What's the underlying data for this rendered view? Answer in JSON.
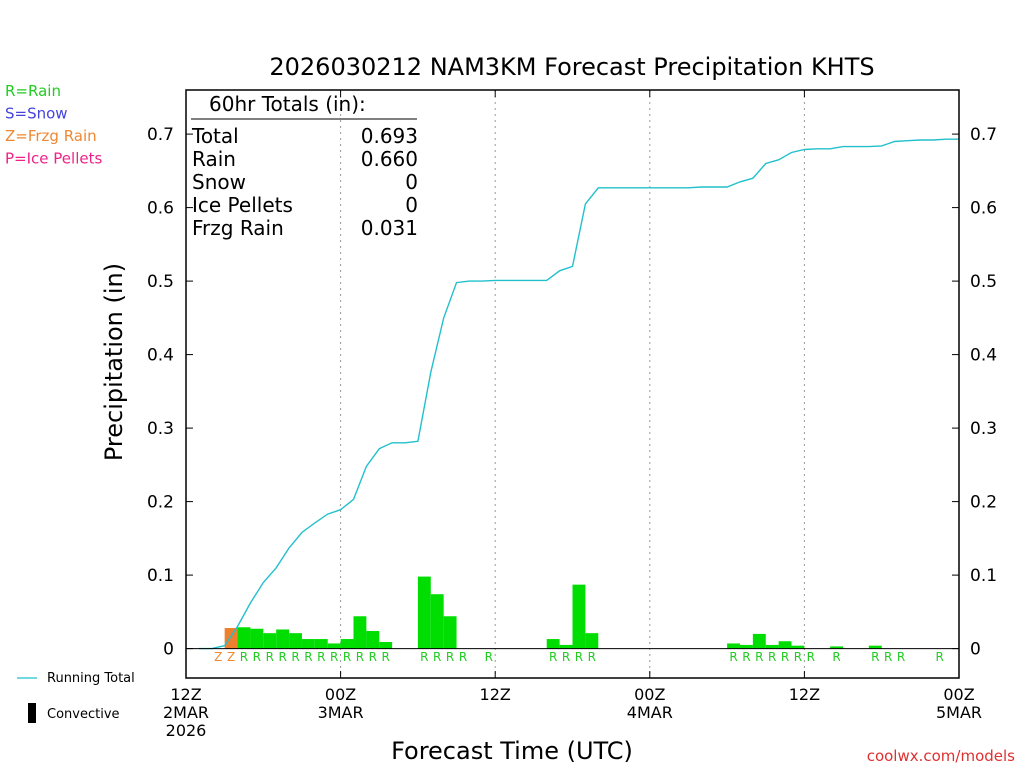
{
  "chart_data": {
    "type": "bar",
    "title": "2026030212 NAM3KM Forecast Precipitation KHTS",
    "xlabel": "Forecast Time (UTC)",
    "ylabel": "Precipitation (in)",
    "ylim": [
      -0.04,
      0.76
    ],
    "xlim_hours": [
      0,
      60
    ],
    "yticks": [
      0,
      0.1,
      0.2,
      0.3,
      0.4,
      0.5,
      0.6,
      0.7
    ],
    "ytick_labels": [
      "0",
      "0.1",
      "0.2",
      "0.3",
      "0.4",
      "0.5",
      "0.6",
      "0.7"
    ],
    "xticks": [
      {
        "hour": 0,
        "lines": [
          "12Z",
          "2MAR",
          "2026"
        ]
      },
      {
        "hour": 12,
        "lines": [
          "00Z",
          "3MAR"
        ]
      },
      {
        "hour": 24,
        "lines": [
          "12Z"
        ]
      },
      {
        "hour": 36,
        "lines": [
          "00Z",
          "4MAR"
        ]
      },
      {
        "hour": 48,
        "lines": [
          "12Z"
        ]
      },
      {
        "hour": 60,
        "lines": [
          "00Z",
          "5MAR"
        ]
      }
    ],
    "grid_hours": [
      12,
      24,
      36,
      48
    ],
    "ptype_legend": [
      {
        "label": "R=Rain",
        "color": "#22cc22"
      },
      {
        "label": "S=Snow",
        "color": "#4444dd"
      },
      {
        "label": "Z=Frzg Rain",
        "color": "#ee8833"
      },
      {
        "label": "P=Ice Pellets",
        "color": "#ee2288"
      }
    ],
    "totals": {
      "header": "60hr Totals (in):",
      "rows": [
        {
          "label": "Total",
          "value": "0.693"
        },
        {
          "label": "Rain",
          "value": "0.660"
        },
        {
          "label": "Snow",
          "value": "0"
        },
        {
          "label": "Ice Pellets",
          "value": "0"
        },
        {
          "label": "Frzg Rain",
          "value": "0.031"
        }
      ]
    },
    "bars": [
      {
        "hour": 4,
        "value": 0.028,
        "type": "Z"
      },
      {
        "hour": 5,
        "value": 0.029,
        "type": "R"
      },
      {
        "hour": 6,
        "value": 0.027,
        "type": "R"
      },
      {
        "hour": 7,
        "value": 0.021,
        "type": "R"
      },
      {
        "hour": 8,
        "value": 0.026,
        "type": "R"
      },
      {
        "hour": 9,
        "value": 0.021,
        "type": "R"
      },
      {
        "hour": 10,
        "value": 0.013,
        "type": "R"
      },
      {
        "hour": 11,
        "value": 0.013,
        "type": "R"
      },
      {
        "hour": 12,
        "value": 0.007,
        "type": "R"
      },
      {
        "hour": 13,
        "value": 0.013,
        "type": "R"
      },
      {
        "hour": 14,
        "value": 0.044,
        "type": "R"
      },
      {
        "hour": 15,
        "value": 0.024,
        "type": "R"
      },
      {
        "hour": 16,
        "value": 0.009,
        "type": "R"
      },
      {
        "hour": 19,
        "value": 0.098,
        "type": "R"
      },
      {
        "hour": 20,
        "value": 0.074,
        "type": "R"
      },
      {
        "hour": 21,
        "value": 0.044,
        "type": "R"
      },
      {
        "hour": 29,
        "value": 0.013,
        "type": "R"
      },
      {
        "hour": 30,
        "value": 0.005,
        "type": "R"
      },
      {
        "hour": 31,
        "value": 0.087,
        "type": "R"
      },
      {
        "hour": 32,
        "value": 0.021,
        "type": "R"
      },
      {
        "hour": 43,
        "value": 0.007,
        "type": "R"
      },
      {
        "hour": 44,
        "value": 0.005,
        "type": "R"
      },
      {
        "hour": 45,
        "value": 0.02,
        "type": "R"
      },
      {
        "hour": 46,
        "value": 0.005,
        "type": "R"
      },
      {
        "hour": 47,
        "value": 0.01,
        "type": "R"
      },
      {
        "hour": 48,
        "value": 0.004,
        "type": "R"
      },
      {
        "hour": 51,
        "value": 0.003,
        "type": "R"
      },
      {
        "hour": 54,
        "value": 0.004,
        "type": "R"
      }
    ],
    "ptype_labels": [
      {
        "hour": 3,
        "label": "Z",
        "color": "#ee8833"
      },
      {
        "hour": 4,
        "label": "Z",
        "color": "#ee8833"
      },
      {
        "hour": 5,
        "label": "R",
        "color": "#22cc22"
      },
      {
        "hour": 6,
        "label": "R",
        "color": "#22cc22"
      },
      {
        "hour": 7,
        "label": "R",
        "color": "#22cc22"
      },
      {
        "hour": 8,
        "label": "R",
        "color": "#22cc22"
      },
      {
        "hour": 9,
        "label": "R",
        "color": "#22cc22"
      },
      {
        "hour": 10,
        "label": "R",
        "color": "#22cc22"
      },
      {
        "hour": 11,
        "label": "R",
        "color": "#22cc22"
      },
      {
        "hour": 12,
        "label": "R",
        "color": "#22cc22"
      },
      {
        "hour": 13,
        "label": "R",
        "color": "#22cc22"
      },
      {
        "hour": 14,
        "label": "R",
        "color": "#22cc22"
      },
      {
        "hour": 15,
        "label": "R",
        "color": "#22cc22"
      },
      {
        "hour": 16,
        "label": "R",
        "color": "#22cc22"
      },
      {
        "hour": 19,
        "label": "R",
        "color": "#22cc22"
      },
      {
        "hour": 20,
        "label": "R",
        "color": "#22cc22"
      },
      {
        "hour": 21,
        "label": "R",
        "color": "#22cc22"
      },
      {
        "hour": 22,
        "label": "R",
        "color": "#22cc22"
      },
      {
        "hour": 24,
        "label": "R",
        "color": "#22cc22"
      },
      {
        "hour": 29,
        "label": "R",
        "color": "#22cc22"
      },
      {
        "hour": 30,
        "label": "R",
        "color": "#22cc22"
      },
      {
        "hour": 31,
        "label": "R",
        "color": "#22cc22"
      },
      {
        "hour": 32,
        "label": "R",
        "color": "#22cc22"
      },
      {
        "hour": 43,
        "label": "R",
        "color": "#22cc22"
      },
      {
        "hour": 44,
        "label": "R",
        "color": "#22cc22"
      },
      {
        "hour": 45,
        "label": "R",
        "color": "#22cc22"
      },
      {
        "hour": 46,
        "label": "R",
        "color": "#22cc22"
      },
      {
        "hour": 47,
        "label": "R",
        "color": "#22cc22"
      },
      {
        "hour": 48,
        "label": "R",
        "color": "#22cc22"
      },
      {
        "hour": 49,
        "label": "R",
        "color": "#22cc22"
      },
      {
        "hour": 51,
        "label": "R",
        "color": "#22cc22"
      },
      {
        "hour": 54,
        "label": "R",
        "color": "#22cc22"
      },
      {
        "hour": 55,
        "label": "R",
        "color": "#22cc22"
      },
      {
        "hour": 56,
        "label": "R",
        "color": "#22cc22"
      },
      {
        "hour": 59,
        "label": "R",
        "color": "#22cc22"
      }
    ],
    "running_total": {
      "name": "Running Total",
      "color": "#22c0cc",
      "x": [
        1,
        2,
        2.5,
        3,
        4,
        5,
        6,
        7,
        8,
        9,
        10,
        11,
        12,
        13,
        14,
        15,
        16,
        17,
        17.5,
        18,
        19,
        20,
        21,
        22,
        23,
        24,
        25,
        26,
        27,
        28,
        29,
        30,
        31,
        32,
        33,
        34,
        35,
        36,
        37,
        38,
        39,
        40,
        41,
        42,
        43,
        44,
        45,
        46,
        47,
        48,
        49,
        50,
        51,
        52,
        53,
        54,
        55,
        56,
        57,
        58,
        59,
        60
      ],
      "y": [
        0,
        0,
        0.002,
        0.004,
        0.03,
        0.062,
        0.09,
        0.11,
        0.137,
        0.158,
        0.171,
        0.183,
        0.189,
        0.203,
        0.248,
        0.272,
        0.28,
        0.28,
        0.281,
        0.282,
        0.376,
        0.45,
        0.498,
        0.5,
        0.5,
        0.501,
        0.501,
        0.501,
        0.501,
        0.501,
        0.514,
        0.52,
        0.605,
        0.627,
        0.627,
        0.627,
        0.627,
        0.627,
        0.627,
        0.627,
        0.627,
        0.628,
        0.628,
        0.628,
        0.635,
        0.64,
        0.66,
        0.665,
        0.675,
        0.679,
        0.68,
        0.68,
        0.683,
        0.683,
        0.683,
        0.684,
        0.69,
        0.691,
        0.692,
        0.692,
        0.693,
        0.693
      ]
    },
    "series_legend": [
      {
        "label": "Running Total",
        "kind": "line"
      },
      {
        "label": "Convective",
        "kind": "bar"
      }
    ],
    "colors": {
      "rain": "#00dd00",
      "frzg_rain": "#ee7f2d",
      "running_total": "#22c0cc"
    },
    "credit": "coolwx.com/models"
  }
}
